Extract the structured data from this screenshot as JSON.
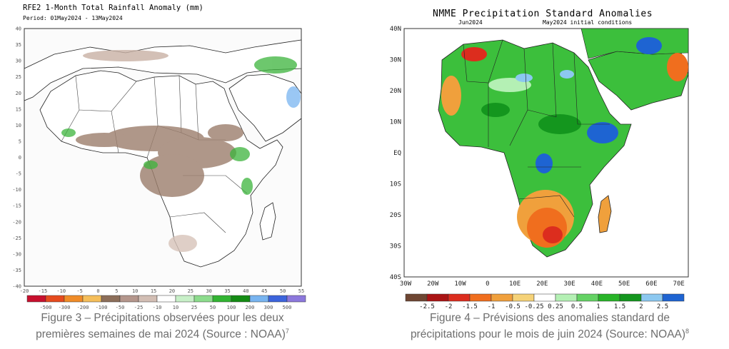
{
  "left_map": {
    "title": "RFE2 1-Month Total Rainfall Anomaly (mm)",
    "period": "Period: 01May2024 - 13May2024",
    "y_ticks": [
      "40",
      "35",
      "30",
      "25",
      "20",
      "15",
      "10",
      "5",
      "0",
      "-5",
      "-10",
      "-15",
      "-20",
      "-25",
      "-30",
      "-35",
      "-40"
    ],
    "x_ticks": [
      "-20",
      "-15",
      "-10",
      "-5",
      "0",
      "5",
      "10",
      "15",
      "20",
      "25",
      "30",
      "35",
      "40",
      "45",
      "50",
      "55"
    ],
    "legend_labels": [
      "-500",
      "-300",
      "-200",
      "-100",
      "-50",
      "-25",
      "-10",
      "10",
      "25",
      "50",
      "100",
      "200",
      "300",
      "500"
    ],
    "legend_colors": [
      "#c8102e",
      "#e64b1e",
      "#f08c28",
      "#f5be5a",
      "#8c6e5a",
      "#b4968c",
      "#d2beb4",
      "#ffffff",
      "#c8f0c8",
      "#8cdc8c",
      "#32b432",
      "#148c14",
      "#78b4f0",
      "#3c64dc",
      "#8c78dc"
    ]
  },
  "right_map": {
    "title": "NMME Precipitation Standard Anomalies",
    "subtitle_left": "Jun2024",
    "subtitle_right": "May2024 initial conditions",
    "y_ticks": [
      "40N",
      "30N",
      "20N",
      "10N",
      "EQ",
      "10S",
      "20S",
      "30S",
      "40S"
    ],
    "x_ticks": [
      "30W",
      "20W",
      "10W",
      "0",
      "10E",
      "20E",
      "30E",
      "40E",
      "50E",
      "60E",
      "70E"
    ],
    "legend_labels": [
      "-2.5",
      "-2",
      "-1.5",
      "-1",
      "-0.5",
      "-0.25",
      "0.25",
      "0.5",
      "1",
      "1.5",
      "2",
      "2.5"
    ],
    "legend_colors": [
      "#6e4632",
      "#aa1414",
      "#dc2d1e",
      "#f06e1e",
      "#f0a03c",
      "#f5d278",
      "#ffffff",
      "#b4f0b4",
      "#64d264",
      "#28b428",
      "#14961e",
      "#8cc8f0",
      "#1e64d2"
    ]
  },
  "captions": {
    "left_line1": "Figure 3 – Précipitations observées pour les deux",
    "left_line2": "premières semaines de mai 2024 (Source : NOAA)",
    "left_sup": "7",
    "right_line1": "Figure 4 – Prévisions des anomalies standard de",
    "right_line2": "précipitations pour le mois de juin 2024 (Source: NOAA)",
    "right_sup": "8"
  }
}
